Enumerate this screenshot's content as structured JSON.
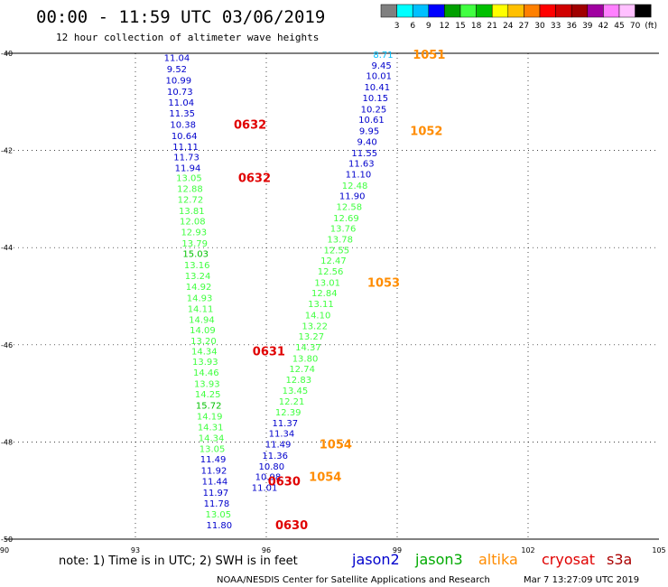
{
  "header": {
    "title": "00:00 - 11:59 UTC 03/06/2019",
    "subtitle": "12 hour collection of altimeter wave heights"
  },
  "scale": {
    "colors": [
      "#808080",
      "#00ffff",
      "#00c0ff",
      "#0000ff",
      "#00a000",
      "#40ff40",
      "#00c000",
      "#ffff00",
      "#ffc000",
      "#ff8000",
      "#ff0000",
      "#d00000",
      "#a00000",
      "#a000a0",
      "#ff80ff",
      "#ffc0ff",
      "#000000"
    ],
    "labels": [
      "3",
      "6",
      "9",
      "12",
      "15",
      "18",
      "21",
      "24",
      "27",
      "30",
      "33",
      "36",
      "39",
      "42",
      "45",
      "70",
      "(ft)"
    ]
  },
  "footer": {
    "note": "note: 1) Time is in UTC; 2) SWH is in feet",
    "credit": "NOAA/NESDIS Center for Satellite Applications and Research",
    "timestamp": "Mar  7 13:27:09 UTC 2019"
  },
  "legend": [
    {
      "label": "jason2",
      "color": "#0000cc"
    },
    {
      "label": "jason3",
      "color": "#00aa00"
    },
    {
      "label": "altika",
      "color": "#ff8c00"
    },
    {
      "label": "cryosat",
      "color": "#e00000"
    },
    {
      "label": "s3a",
      "color": "#aa0000"
    }
  ],
  "chart_data": {
    "type": "scatter",
    "xlim": [
      90,
      105
    ],
    "ylim": [
      -50,
      -40
    ],
    "xticks": [
      "90",
      "93",
      "96",
      "99",
      "102",
      "105"
    ],
    "yticks": [
      "-40",
      "-42",
      "-44",
      "-46",
      "-48",
      "-50"
    ],
    "track_left": [
      {
        "v": "11.04",
        "c": "#0000cc",
        "x": 93.95,
        "y": -40.08
      },
      {
        "v": "9.52",
        "c": "#0000cc",
        "x": 93.95,
        "y": -40.32
      },
      {
        "v": "10.99",
        "c": "#0000cc",
        "x": 93.99,
        "y": -40.55
      },
      {
        "v": "10.73",
        "c": "#0000cc",
        "x": 94.02,
        "y": -40.78
      },
      {
        "v": "11.04",
        "c": "#0000cc",
        "x": 94.05,
        "y": -41.0
      },
      {
        "v": "11.35",
        "c": "#0000cc",
        "x": 94.07,
        "y": -41.23
      },
      {
        "v": "10.38",
        "c": "#0000cc",
        "x": 94.09,
        "y": -41.46
      },
      {
        "v": "10.64",
        "c": "#0000cc",
        "x": 94.12,
        "y": -41.69
      },
      {
        "v": "11.11",
        "c": "#0000cc",
        "x": 94.15,
        "y": -41.91
      },
      {
        "v": "11.73",
        "c": "#0000cc",
        "x": 94.17,
        "y": -42.13
      },
      {
        "v": "11.94",
        "c": "#0000cc",
        "x": 94.2,
        "y": -42.35
      },
      {
        "v": "13.05",
        "c": "#40ff40",
        "x": 94.23,
        "y": -42.56
      },
      {
        "v": "12.88",
        "c": "#40ff40",
        "x": 94.25,
        "y": -42.78
      },
      {
        "v": "12.72",
        "c": "#40ff40",
        "x": 94.26,
        "y": -43.0
      },
      {
        "v": "13.81",
        "c": "#40ff40",
        "x": 94.29,
        "y": -43.23
      },
      {
        "v": "12.08",
        "c": "#40ff40",
        "x": 94.31,
        "y": -43.45
      },
      {
        "v": "12.93",
        "c": "#40ff40",
        "x": 94.34,
        "y": -43.67
      },
      {
        "v": "13.79",
        "c": "#40ff40",
        "x": 94.36,
        "y": -43.9
      },
      {
        "v": "15.03",
        "c": "#00c000",
        "x": 94.38,
        "y": -44.12
      },
      {
        "v": "13.16",
        "c": "#40ff40",
        "x": 94.41,
        "y": -44.35
      },
      {
        "v": "13.24",
        "c": "#40ff40",
        "x": 94.43,
        "y": -44.57
      },
      {
        "v": "14.92",
        "c": "#40ff40",
        "x": 94.45,
        "y": -44.8
      },
      {
        "v": "14.93",
        "c": "#40ff40",
        "x": 94.47,
        "y": -45.03
      },
      {
        "v": "14.11",
        "c": "#40ff40",
        "x": 94.49,
        "y": -45.25
      },
      {
        "v": "14.94",
        "c": "#40ff40",
        "x": 94.52,
        "y": -45.47
      },
      {
        "v": "14.09",
        "c": "#40ff40",
        "x": 94.54,
        "y": -45.69
      },
      {
        "v": "13.20",
        "c": "#40ff40",
        "x": 94.56,
        "y": -45.91
      },
      {
        "v": "14.34",
        "c": "#40ff40",
        "x": 94.58,
        "y": -46.12
      },
      {
        "v": "13.93",
        "c": "#40ff40",
        "x": 94.6,
        "y": -46.34
      },
      {
        "v": "14.46",
        "c": "#40ff40",
        "x": 94.62,
        "y": -46.56
      },
      {
        "v": "13.93",
        "c": "#40ff40",
        "x": 94.64,
        "y": -46.79
      },
      {
        "v": "14.25",
        "c": "#40ff40",
        "x": 94.66,
        "y": -47.01
      },
      {
        "v": "15.72",
        "c": "#00c000",
        "x": 94.68,
        "y": -47.24
      },
      {
        "v": "14.19",
        "c": "#40ff40",
        "x": 94.7,
        "y": -47.46
      },
      {
        "v": "14.31",
        "c": "#40ff40",
        "x": 94.72,
        "y": -47.69
      },
      {
        "v": "14.34",
        "c": "#40ff40",
        "x": 94.74,
        "y": -47.91
      },
      {
        "v": "13.05",
        "c": "#40ff40",
        "x": 94.76,
        "y": -48.13
      },
      {
        "v": "11.49",
        "c": "#0000cc",
        "x": 94.78,
        "y": -48.35
      },
      {
        "v": "11.92",
        "c": "#0000cc",
        "x": 94.8,
        "y": -48.58
      },
      {
        "v": "11.44",
        "c": "#0000cc",
        "x": 94.82,
        "y": -48.8
      },
      {
        "v": "11.97",
        "c": "#0000cc",
        "x": 94.84,
        "y": -49.03
      },
      {
        "v": "11.78",
        "c": "#0000cc",
        "x": 94.86,
        "y": -49.26
      },
      {
        "v": "13.05",
        "c": "#40ff40",
        "x": 94.9,
        "y": -49.48
      },
      {
        "v": "11.80",
        "c": "#0000cc",
        "x": 94.92,
        "y": -49.7
      }
    ],
    "track_right": [
      {
        "v": "8.71",
        "c": "#00c0ff",
        "x": 98.68,
        "y": -40.02
      },
      {
        "v": "9.45",
        "c": "#0000cc",
        "x": 98.64,
        "y": -40.24
      },
      {
        "v": "10.01",
        "c": "#0000cc",
        "x": 98.58,
        "y": -40.46
      },
      {
        "v": "10.41",
        "c": "#0000cc",
        "x": 98.54,
        "y": -40.69
      },
      {
        "v": "10.15",
        "c": "#0000cc",
        "x": 98.5,
        "y": -40.91
      },
      {
        "v": "10.25",
        "c": "#0000cc",
        "x": 98.46,
        "y": -41.14
      },
      {
        "v": "10.61",
        "c": "#0000cc",
        "x": 98.41,
        "y": -41.36
      },
      {
        "v": "9.95",
        "c": "#0000cc",
        "x": 98.36,
        "y": -41.59
      },
      {
        "v": "9.40",
        "c": "#0000cc",
        "x": 98.31,
        "y": -41.81
      },
      {
        "v": "11.55",
        "c": "#0000cc",
        "x": 98.25,
        "y": -42.04
      },
      {
        "v": "11.63",
        "c": "#0000cc",
        "x": 98.18,
        "y": -42.26
      },
      {
        "v": "11.10",
        "c": "#0000cc",
        "x": 98.11,
        "y": -42.48
      },
      {
        "v": "12.48",
        "c": "#40ff40",
        "x": 98.03,
        "y": -42.71
      },
      {
        "v": "11.90",
        "c": "#0000cc",
        "x": 97.97,
        "y": -42.93
      },
      {
        "v": "12.58",
        "c": "#40ff40",
        "x": 97.9,
        "y": -43.15
      },
      {
        "v": "12.69",
        "c": "#40ff40",
        "x": 97.83,
        "y": -43.38
      },
      {
        "v": "13.76",
        "c": "#40ff40",
        "x": 97.76,
        "y": -43.6
      },
      {
        "v": "13.78",
        "c": "#40ff40",
        "x": 97.69,
        "y": -43.82
      },
      {
        "v": "12.55",
        "c": "#40ff40",
        "x": 97.61,
        "y": -44.04
      },
      {
        "v": "12.47",
        "c": "#40ff40",
        "x": 97.54,
        "y": -44.26
      },
      {
        "v": "12.56",
        "c": "#40ff40",
        "x": 97.47,
        "y": -44.48
      },
      {
        "v": "13.01",
        "c": "#40ff40",
        "x": 97.4,
        "y": -44.71
      },
      {
        "v": "12.84",
        "c": "#40ff40",
        "x": 97.33,
        "y": -44.93
      },
      {
        "v": "13.11",
        "c": "#40ff40",
        "x": 97.25,
        "y": -45.15
      },
      {
        "v": "14.10",
        "c": "#40ff40",
        "x": 97.18,
        "y": -45.38
      },
      {
        "v": "13.22",
        "c": "#40ff40",
        "x": 97.11,
        "y": -45.6
      },
      {
        "v": "13.27",
        "c": "#40ff40",
        "x": 97.03,
        "y": -45.82
      },
      {
        "v": "14.37",
        "c": "#40ff40",
        "x": 96.96,
        "y": -46.04
      },
      {
        "v": "13.80",
        "c": "#40ff40",
        "x": 96.89,
        "y": -46.27
      },
      {
        "v": "12.74",
        "c": "#40ff40",
        "x": 96.82,
        "y": -46.49
      },
      {
        "v": "12.83",
        "c": "#40ff40",
        "x": 96.74,
        "y": -46.71
      },
      {
        "v": "13.45",
        "c": "#40ff40",
        "x": 96.66,
        "y": -46.93
      },
      {
        "v": "12.21",
        "c": "#40ff40",
        "x": 96.58,
        "y": -47.16
      },
      {
        "v": "12.39",
        "c": "#40ff40",
        "x": 96.5,
        "y": -47.38
      },
      {
        "v": "11.37",
        "c": "#0000cc",
        "x": 96.43,
        "y": -47.6
      },
      {
        "v": "11.34",
        "c": "#0000cc",
        "x": 96.35,
        "y": -47.82
      },
      {
        "v": "11.49",
        "c": "#0000cc",
        "x": 96.27,
        "y": -48.04
      },
      {
        "v": "11.36",
        "c": "#0000cc",
        "x": 96.2,
        "y": -48.27
      },
      {
        "v": "10.80",
        "c": "#0000cc",
        "x": 96.12,
        "y": -48.49
      },
      {
        "v": "10.98",
        "c": "#0000cc",
        "x": 96.04,
        "y": -48.71
      },
      {
        "v": "11.01",
        "c": "#0000cc",
        "x": 95.96,
        "y": -48.93
      }
    ],
    "time_labels": [
      {
        "v": "0632",
        "c": "#e00000",
        "x": 95.63,
        "y": -41.46
      },
      {
        "v": "0632",
        "c": "#e00000",
        "x": 95.73,
        "y": -42.56
      },
      {
        "v": "0631",
        "c": "#e00000",
        "x": 96.06,
        "y": -46.12
      },
      {
        "v": "0630",
        "c": "#e00000",
        "x": 96.41,
        "y": -48.8
      },
      {
        "v": "0630",
        "c": "#e00000",
        "x": 96.58,
        "y": -49.7
      },
      {
        "v": "1051",
        "c": "#ff8c00",
        "x": 99.73,
        "y": -40.02
      },
      {
        "v": "1052",
        "c": "#ff8c00",
        "x": 99.67,
        "y": -41.59
      },
      {
        "v": "1053",
        "c": "#ff8c00",
        "x": 98.69,
        "y": -44.71
      },
      {
        "v": "1054",
        "c": "#ff8c00",
        "x": 97.59,
        "y": -48.04
      },
      {
        "v": "1054",
        "c": "#ff8c00",
        "x": 97.35,
        "y": -48.71
      }
    ]
  }
}
